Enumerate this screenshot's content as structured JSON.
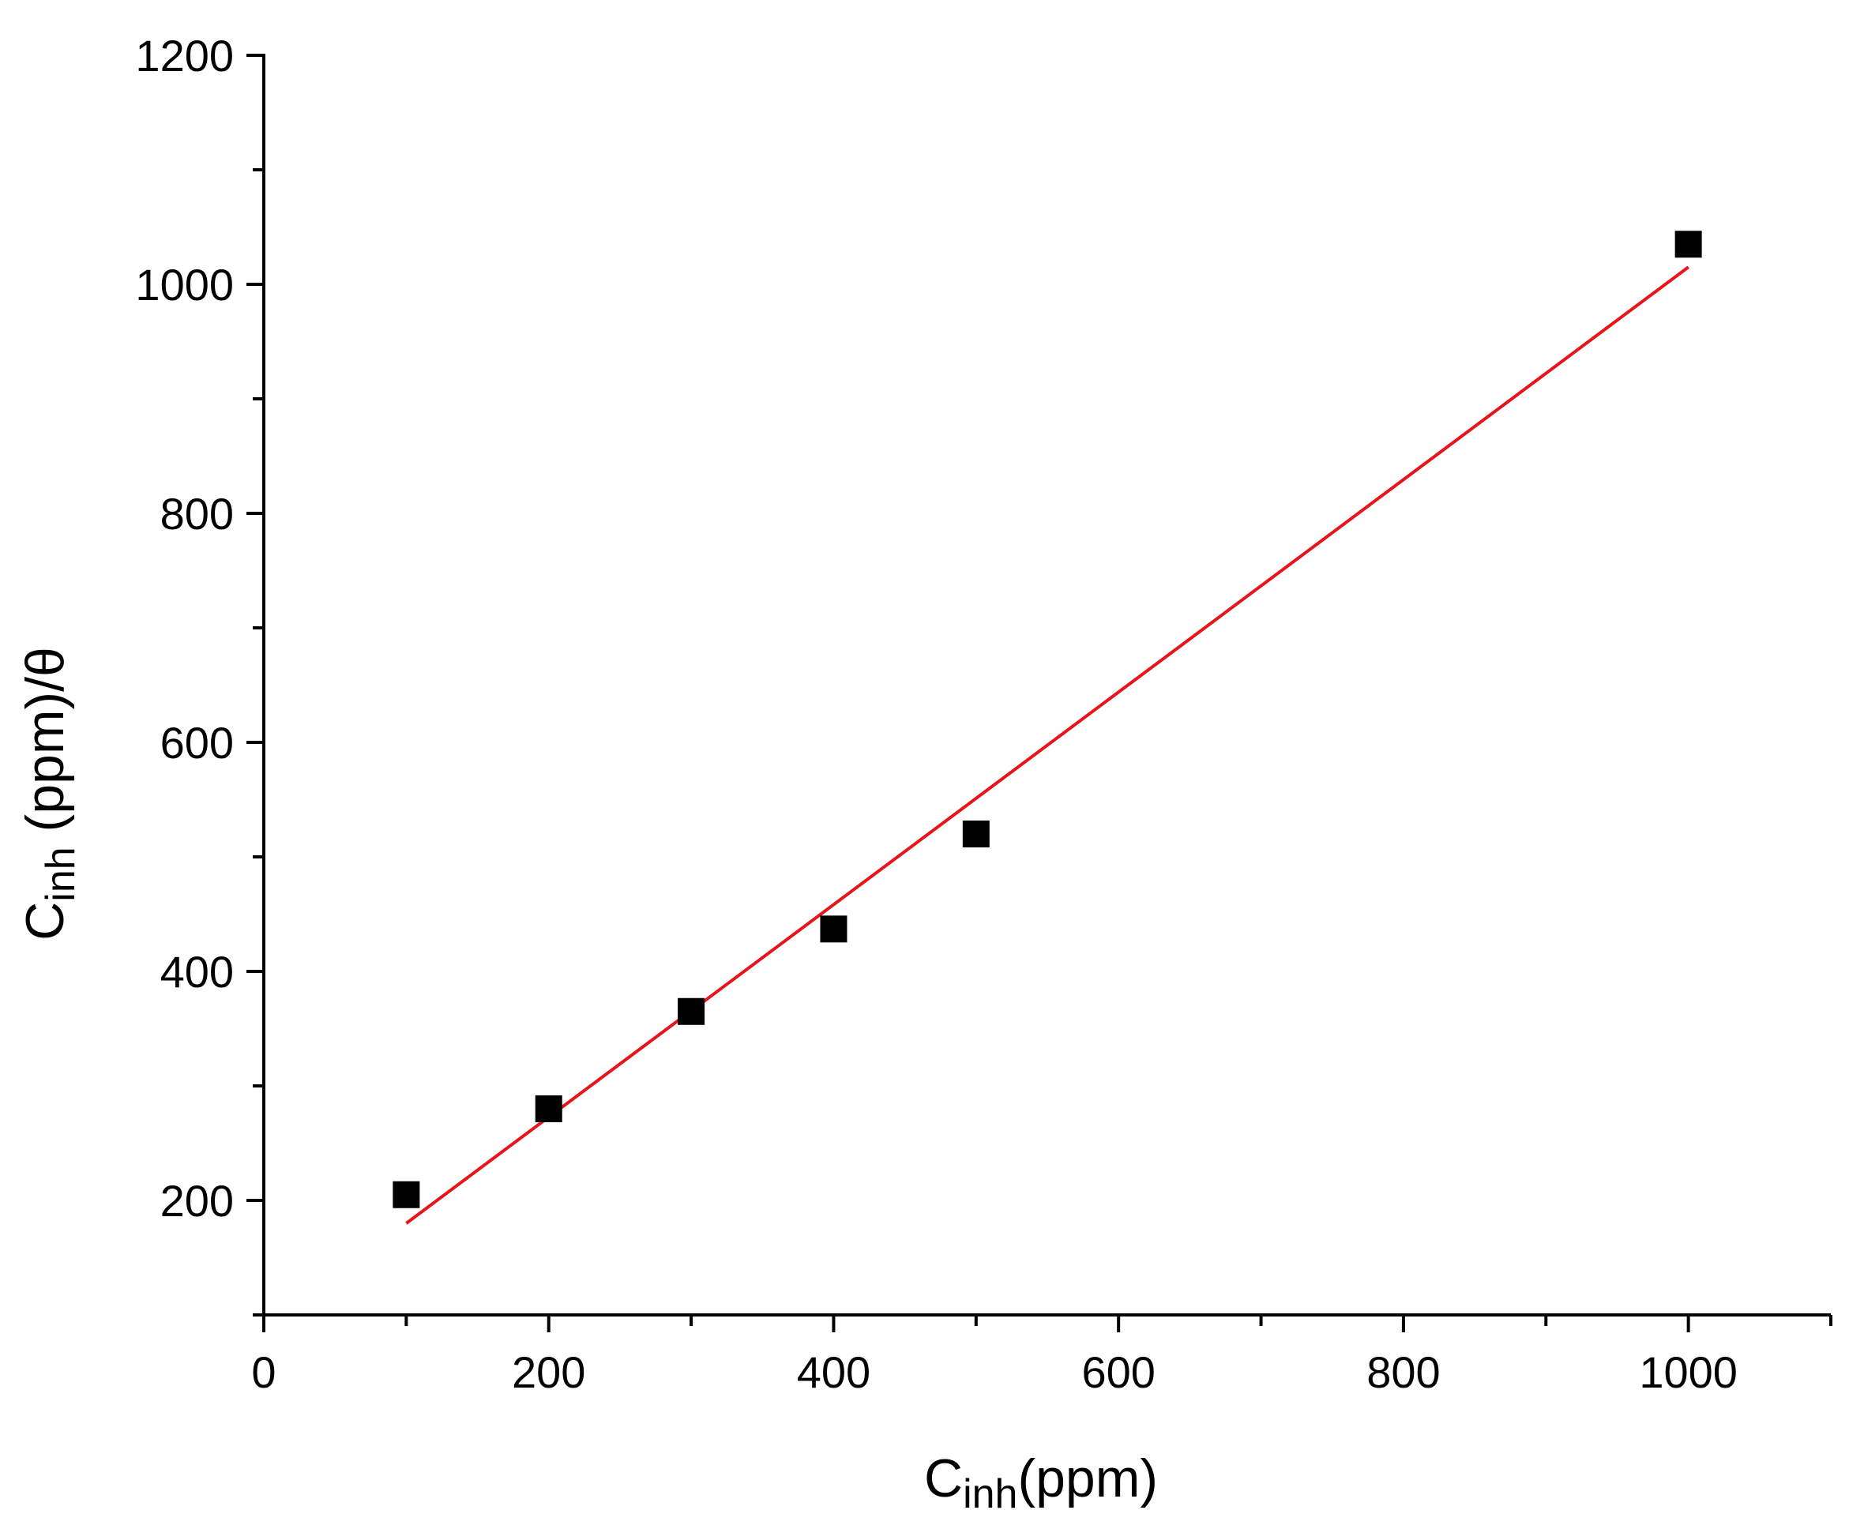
{
  "chart_data": {
    "type": "scatter",
    "title": "",
    "xlabel": {
      "base": "C",
      "sub": "inh",
      "rest": "(ppm)"
    },
    "ylabel": {
      "base": "C",
      "sub": "inh",
      "rest": " (ppm)/θ"
    },
    "xlim": [
      0,
      1100
    ],
    "ylim": [
      100,
      1200
    ],
    "xticks": [
      0,
      200,
      400,
      600,
      800,
      1000
    ],
    "yticks": [
      200,
      400,
      600,
      800,
      1000,
      1200
    ],
    "xtick_labels": [
      "0",
      "200",
      "400",
      "600",
      "800",
      "1000"
    ],
    "ytick_labels": [
      "200",
      "400",
      "600",
      "800",
      "1000",
      "1200"
    ],
    "grid": false,
    "marker_color": "#000000",
    "fit_color": "#e8141b",
    "points": [
      {
        "x": 100,
        "y": 205
      },
      {
        "x": 200,
        "y": 280
      },
      {
        "x": 300,
        "y": 365
      },
      {
        "x": 400,
        "y": 437
      },
      {
        "x": 500,
        "y": 520
      },
      {
        "x": 1000,
        "y": 1035
      }
    ],
    "fit_line": {
      "x": [
        100,
        1000
      ],
      "y": [
        180,
        1015
      ]
    }
  }
}
